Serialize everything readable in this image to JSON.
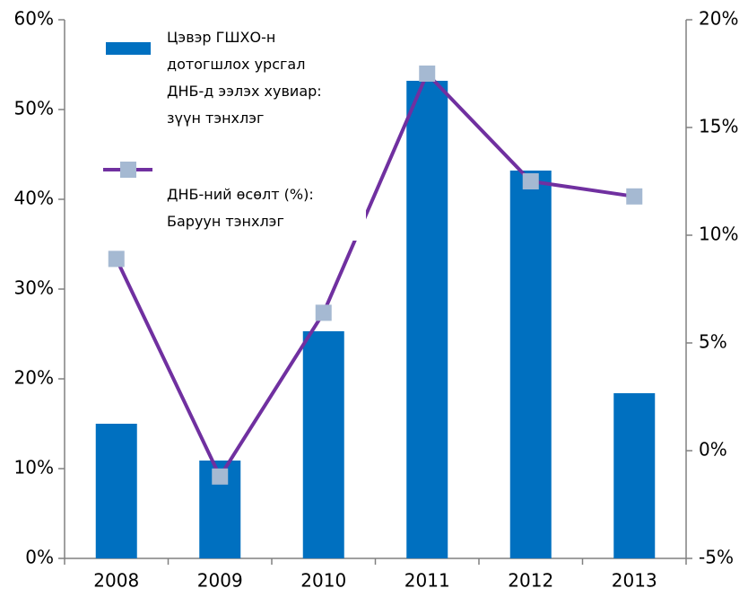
{
  "chart_data": {
    "type": "bar_line",
    "categories": [
      "2008",
      "2009",
      "2010",
      "2011",
      "2012",
      "2013"
    ],
    "series": [
      {
        "name": "Цэвэр ГШХО-н дотогшлох урсгал ДНБ-д ээлэх хувиар: зүүн тэнхлэг",
        "type": "bar",
        "color": "#0070c0",
        "values": [
          15.0,
          10.9,
          25.3,
          53.2,
          43.2,
          18.4
        ]
      },
      {
        "name": "ДНБ-ний өсөлт (%): Баруун тэнхлэг",
        "type": "line",
        "axis": "y2",
        "color": "#7030a0",
        "marker_color": "#a5b9d2",
        "values": [
          8.9,
          -1.2,
          6.4,
          17.5,
          12.5,
          11.8
        ]
      }
    ],
    "ylim": [
      0,
      60
    ],
    "yticks": [
      {
        "value": 0,
        "label": "0%"
      },
      {
        "value": 10,
        "label": "10%"
      },
      {
        "value": 20,
        "label": "20%"
      },
      {
        "value": 30,
        "label": "30%"
      },
      {
        "value": 40,
        "label": "40%"
      },
      {
        "value": 50,
        "label": "50%"
      },
      {
        "value": 60,
        "label": "60%"
      }
    ],
    "y2lim": [
      -5,
      20
    ],
    "y2ticks": [
      {
        "value": -5,
        "label": "-5%"
      },
      {
        "value": 0,
        "label": "0%"
      },
      {
        "value": 5,
        "label": "5%"
      },
      {
        "value": 10,
        "label": "10%"
      },
      {
        "value": 15,
        "label": "15%"
      },
      {
        "value": 20,
        "label": "20%"
      }
    ],
    "grid": false
  }
}
